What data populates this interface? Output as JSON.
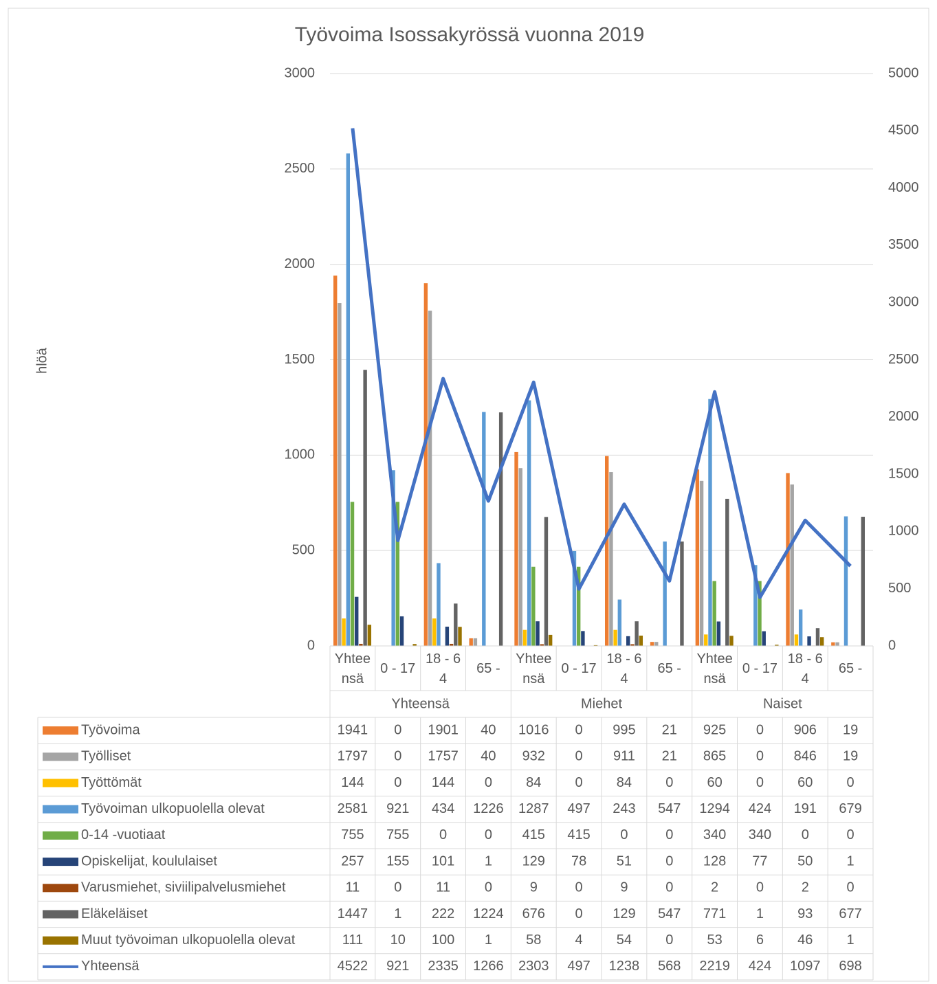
{
  "chart_data": {
    "type": "bar",
    "title": "Työvoima Isossakyrössä vuonna 2019",
    "y_label": "hlöä",
    "categories": [
      "Yhteensä",
      "0 - 17",
      "18 - 64",
      "65 -",
      "Yhteensä",
      "0 - 17",
      "18 - 64",
      "65 -",
      "Yhteensä",
      "0 - 17",
      "18 - 64",
      "65 -"
    ],
    "groups": [
      "Yhteensä",
      "Miehet",
      "Naiset"
    ],
    "ylim": [
      0,
      3000
    ],
    "yticks": [
      0,
      500,
      1000,
      1500,
      2000,
      2500,
      3000
    ],
    "y2lim": [
      0,
      5000
    ],
    "y2ticks": [
      0,
      500,
      1000,
      1500,
      2000,
      2500,
      3000,
      3500,
      4000,
      4500,
      5000
    ],
    "grid": true,
    "series": [
      {
        "name": "Työvoima",
        "color": "#ed7d31",
        "values": [
          1941,
          0,
          1901,
          40,
          1016,
          0,
          995,
          21,
          925,
          0,
          906,
          19
        ]
      },
      {
        "name": "Työlliset",
        "color": "#a5a5a5",
        "values": [
          1797,
          0,
          1757,
          40,
          932,
          0,
          911,
          21,
          865,
          0,
          846,
          19
        ]
      },
      {
        "name": "Työttömät",
        "color": "#ffc000",
        "values": [
          144,
          0,
          144,
          0,
          84,
          0,
          84,
          0,
          60,
          0,
          60,
          0
        ]
      },
      {
        "name": "Työvoiman ulkopuolella olevat",
        "color": "#5b9bd5",
        "values": [
          2581,
          921,
          434,
          1226,
          1287,
          497,
          243,
          547,
          1294,
          424,
          191,
          679
        ]
      },
      {
        "name": "0-14 -vuotiaat",
        "color": "#70ad47",
        "values": [
          755,
          755,
          0,
          0,
          415,
          415,
          0,
          0,
          340,
          340,
          0,
          0
        ]
      },
      {
        "name": "Opiskelijat, koululaiset",
        "color": "#264478",
        "values": [
          257,
          155,
          101,
          1,
          129,
          78,
          51,
          0,
          128,
          77,
          50,
          1
        ]
      },
      {
        "name": "Varusmiehet, siviilipalvelusmiehet",
        "color": "#9e480e",
        "values": [
          11,
          0,
          11,
          0,
          9,
          0,
          9,
          0,
          2,
          0,
          2,
          0
        ]
      },
      {
        "name": "Eläkeläiset",
        "color": "#636363",
        "values": [
          1447,
          1,
          222,
          1224,
          676,
          0,
          129,
          547,
          771,
          1,
          93,
          677
        ]
      },
      {
        "name": "Muut työvoiman ulkopuolella olevat",
        "color": "#997300",
        "values": [
          111,
          10,
          100,
          1,
          58,
          4,
          54,
          0,
          53,
          6,
          46,
          1
        ]
      },
      {
        "name": "Yhteensä",
        "color": "#4472c4",
        "type": "line",
        "axis": "y2",
        "values": [
          4522,
          921,
          2335,
          1266,
          2303,
          497,
          1238,
          568,
          2219,
          424,
          1097,
          698
        ]
      }
    ]
  }
}
